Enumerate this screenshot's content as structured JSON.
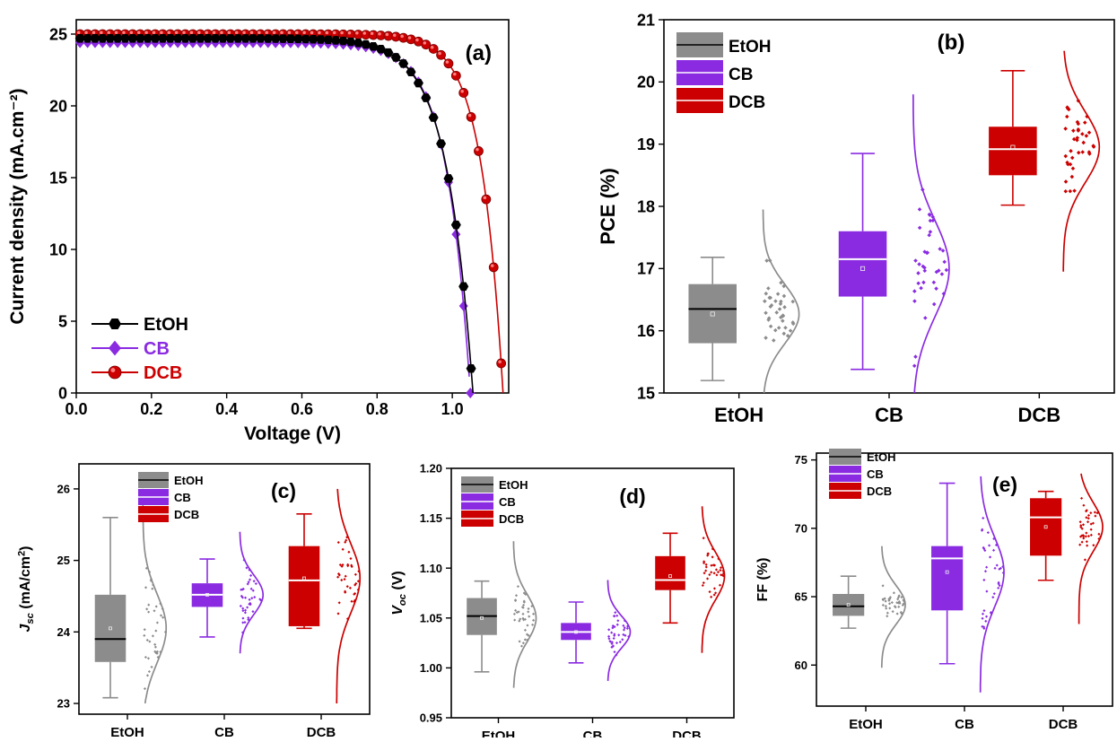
{
  "colors": {
    "EtOH": "#8c8c8c",
    "CB": "#8a2be2",
    "DCB": "#cc0000",
    "EtOH_jv": "#000000",
    "axis": "#000000"
  },
  "chart_data": [
    {
      "id": "a",
      "type": "line",
      "panel_label": "(a)",
      "xlabel": "Voltage (V)",
      "ylabel": "Current density (mA.cm⁻²)",
      "xlim": [
        0,
        1.15
      ],
      "ylim": [
        0,
        26
      ],
      "xticks": [
        0.0,
        0.2,
        0.4,
        0.6,
        0.8,
        1.0
      ],
      "xtick_labels": [
        "0.0",
        "0.2",
        "0.4",
        "0.6",
        "0.8",
        "1.0"
      ],
      "yticks": [
        0,
        5,
        10,
        15,
        20,
        25
      ],
      "ytick_labels": [
        "0",
        "5",
        "10",
        "15",
        "20",
        "25"
      ],
      "legend": {
        "position": "bottom-left",
        "entries": [
          "EtOH",
          "CB",
          "DCB"
        ]
      },
      "series": [
        {
          "name": "EtOH",
          "marker": "hexagon",
          "jsc": 24.7,
          "voc": 1.055,
          "n": 0.07
        },
        {
          "name": "CB",
          "marker": "diamond",
          "jsc": 24.4,
          "voc": 1.048,
          "n": 0.063
        },
        {
          "name": "DCB",
          "marker": "circle",
          "jsc": 25.0,
          "voc": 1.135,
          "n": 0.058
        }
      ]
    },
    {
      "id": "b",
      "type": "box",
      "panel_label": "(b)",
      "ylabel": "PCE (%)",
      "ylim": [
        15,
        21
      ],
      "yticks": [
        15,
        16,
        17,
        18,
        19,
        20,
        21
      ],
      "ytick_labels": [
        "15",
        "16",
        "17",
        "18",
        "19",
        "20",
        "21"
      ],
      "categories": [
        "EtOH",
        "CB",
        "DCB"
      ],
      "legend": {
        "position": "top-left",
        "entries": [
          "EtOH",
          "CB",
          "DCB"
        ]
      },
      "boxes": [
        {
          "name": "EtOH",
          "min": 15.2,
          "q1": 15.8,
          "median": 16.35,
          "q3": 16.75,
          "max": 17.18,
          "mean": 16.27,
          "curve": [
            15.0,
            17.95
          ]
        },
        {
          "name": "CB",
          "min": 15.38,
          "q1": 16.55,
          "median": 17.15,
          "q3": 17.6,
          "max": 18.85,
          "mean": 17.0,
          "curve": [
            15.0,
            19.8
          ]
        },
        {
          "name": "DCB",
          "min": 18.02,
          "q1": 18.5,
          "median": 18.92,
          "q3": 19.28,
          "max": 20.18,
          "mean": 18.95,
          "curve": [
            16.95,
            20.5
          ]
        }
      ]
    },
    {
      "id": "c",
      "type": "box",
      "panel_label": "(c)",
      "ylabel": "Jsc (mA/cm²)",
      "ylabel_main": "J",
      "ylabel_sub": "sc",
      "ylabel_unit": " (mA/cm",
      "ylabel_sup": "2",
      "ylabel_end": ")",
      "ylim": [
        22.85,
        26.35
      ],
      "yticks": [
        23,
        24,
        25,
        26
      ],
      "ytick_labels": [
        "23",
        "24",
        "25",
        "26"
      ],
      "categories": [
        "EtOH",
        "CB",
        "DCB"
      ],
      "legend": {
        "position": "top-left",
        "entries": [
          "EtOH",
          "CB",
          "DCB"
        ]
      },
      "boxes": [
        {
          "name": "EtOH",
          "min": 23.08,
          "q1": 23.58,
          "median": 23.9,
          "q3": 24.52,
          "max": 25.6,
          "mean": 24.05,
          "curve": [
            23.0,
            26.0
          ]
        },
        {
          "name": "CB",
          "min": 23.93,
          "q1": 24.35,
          "median": 24.52,
          "q3": 24.68,
          "max": 25.02,
          "mean": 24.52,
          "curve": [
            23.7,
            25.4
          ]
        },
        {
          "name": "DCB",
          "min": 24.05,
          "q1": 24.08,
          "median": 24.72,
          "q3": 25.2,
          "max": 25.65,
          "mean": 24.75,
          "curve": [
            23.0,
            26.0
          ]
        }
      ]
    },
    {
      "id": "d",
      "type": "box",
      "panel_label": "(d)",
      "ylabel": "Voc (V)",
      "ylabel_main": "V",
      "ylabel_sub": "oc",
      "ylabel_unit": " (V)",
      "ylim": [
        0.95,
        1.2
      ],
      "yticks": [
        0.95,
        1.0,
        1.05,
        1.1,
        1.15,
        1.2
      ],
      "ytick_labels": [
        "0.95",
        "1.00",
        "1.05",
        "1.10",
        "1.15",
        "1.20"
      ],
      "categories": [
        "EtOH",
        "CB",
        "DCB"
      ],
      "legend": {
        "position": "top-left",
        "entries": [
          "EtOH",
          "CB",
          "DCB"
        ]
      },
      "boxes": [
        {
          "name": "EtOH",
          "min": 0.996,
          "q1": 1.033,
          "median": 1.052,
          "q3": 1.07,
          "max": 1.087,
          "mean": 1.05,
          "curve": [
            0.98,
            1.127
          ]
        },
        {
          "name": "CB",
          "min": 1.005,
          "q1": 1.028,
          "median": 1.036,
          "q3": 1.045,
          "max": 1.066,
          "mean": 1.036,
          "curve": [
            0.987,
            1.088
          ]
        },
        {
          "name": "DCB",
          "min": 1.045,
          "q1": 1.078,
          "median": 1.088,
          "q3": 1.112,
          "max": 1.135,
          "mean": 1.092,
          "curve": [
            1.015,
            1.162
          ]
        }
      ]
    },
    {
      "id": "e",
      "type": "box",
      "panel_label": "(e)",
      "ylabel": "FF (%)",
      "ylim": [
        57,
        75.5
      ],
      "yticks": [
        60,
        65,
        70,
        75
      ],
      "ytick_labels": [
        "60",
        "65",
        "70",
        "75"
      ],
      "categories": [
        "EtOH",
        "CB",
        "DCB"
      ],
      "legend": {
        "position": "top-left",
        "entries": [
          "EtOH",
          "CB",
          "DCB"
        ]
      },
      "boxes": [
        {
          "name": "EtOH",
          "min": 62.7,
          "q1": 63.6,
          "median": 64.3,
          "q3": 65.2,
          "max": 66.5,
          "mean": 64.4,
          "curve": [
            59.8,
            68.7
          ]
        },
        {
          "name": "CB",
          "min": 60.1,
          "q1": 64.0,
          "median": 67.8,
          "q3": 68.7,
          "max": 73.3,
          "mean": 66.8,
          "curve": [
            58.0,
            73.8
          ]
        },
        {
          "name": "DCB",
          "min": 66.2,
          "q1": 68.0,
          "median": 70.8,
          "q3": 72.2,
          "max": 72.7,
          "mean": 70.1,
          "curve": [
            63.0,
            74.0
          ]
        }
      ]
    }
  ]
}
